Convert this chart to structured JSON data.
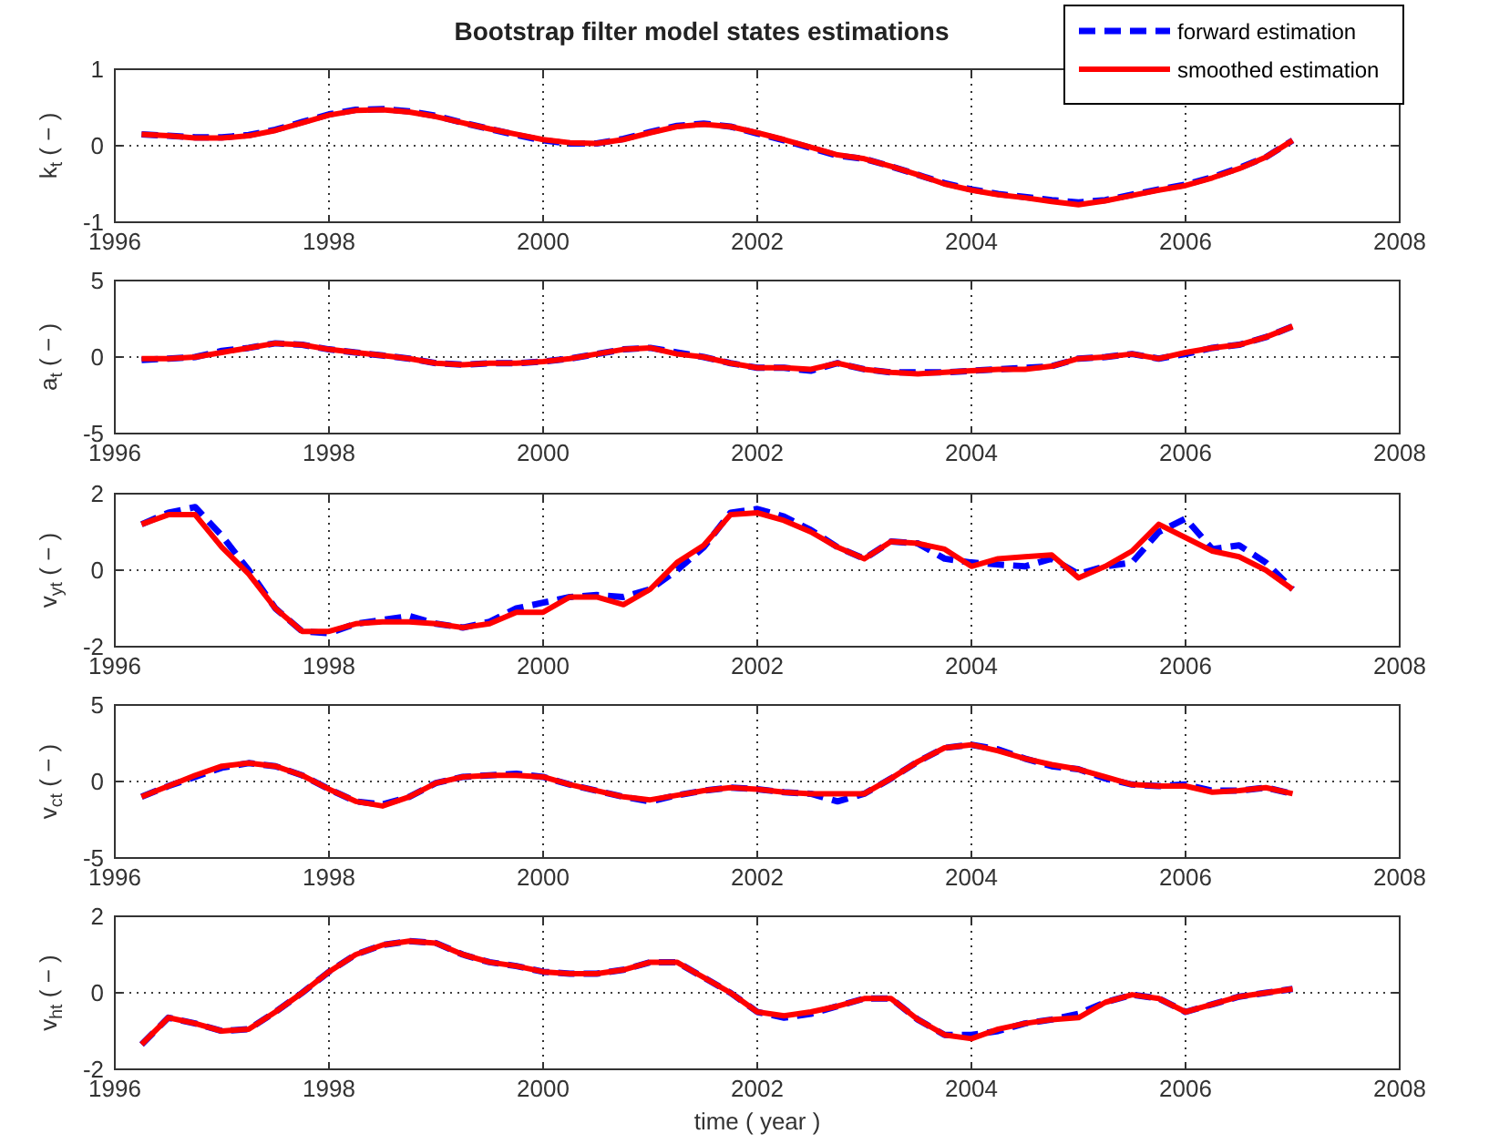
{
  "chart_data": [
    {
      "type": "line",
      "title": "Bootstrap filter model states estimations",
      "ylabel": "k$_{t}$ ( − )",
      "legend": "top right",
      "grid": true,
      "xlim": [
        1996,
        2008
      ],
      "xticks": [
        1996,
        1998,
        2000,
        2002,
        2004,
        2006,
        2008
      ],
      "ylim": [
        -1,
        1
      ],
      "yticks": [
        -1,
        0,
        1
      ],
      "x": [
        1996.25,
        1996.5,
        1996.75,
        1997,
        1997.25,
        1997.5,
        1997.75,
        1998,
        1998.25,
        1998.5,
        1998.75,
        1999,
        1999.25,
        1999.5,
        1999.75,
        2000,
        2000.25,
        2000.5,
        2000.75,
        2001,
        2001.25,
        2001.5,
        2001.75,
        2002,
        2002.25,
        2002.5,
        2002.75,
        2003,
        2003.25,
        2003.5,
        2003.75,
        2004,
        2004.25,
        2004.5,
        2004.75,
        2005,
        2005.25,
        2005.5,
        2005.75,
        2006,
        2006.25,
        2006.5,
        2006.75,
        2007
      ],
      "series": [
        {
          "name": "forward estimation",
          "color": "#0000ff",
          "line_style": "dashed",
          "values": [
            0.15,
            0.13,
            0.11,
            0.11,
            0.14,
            0.21,
            0.31,
            0.41,
            0.47,
            0.48,
            0.45,
            0.39,
            0.3,
            0.22,
            0.14,
            0.07,
            0.03,
            0.03,
            0.09,
            0.18,
            0.26,
            0.29,
            0.25,
            0.16,
            0.07,
            -0.03,
            -0.13,
            -0.17,
            -0.27,
            -0.38,
            -0.49,
            -0.57,
            -0.63,
            -0.67,
            -0.71,
            -0.74,
            -0.71,
            -0.64,
            -0.57,
            -0.51,
            -0.41,
            -0.29,
            -0.15,
            0.07
          ]
        },
        {
          "name": "smoothed estimation",
          "color": "#ff0000",
          "line_style": "solid",
          "values": [
            0.15,
            0.13,
            0.1,
            0.1,
            0.13,
            0.2,
            0.3,
            0.4,
            0.46,
            0.47,
            0.44,
            0.38,
            0.3,
            0.22,
            0.15,
            0.08,
            0.04,
            0.03,
            0.08,
            0.17,
            0.25,
            0.28,
            0.25,
            0.17,
            0.08,
            -0.02,
            -0.12,
            -0.17,
            -0.27,
            -0.38,
            -0.5,
            -0.58,
            -0.64,
            -0.68,
            -0.73,
            -0.77,
            -0.72,
            -0.65,
            -0.58,
            -0.52,
            -0.42,
            -0.3,
            -0.15,
            0.07
          ]
        }
      ]
    },
    {
      "type": "line",
      "ylabel": "a$_{t}$ ( − )",
      "grid": true,
      "xlim": [
        1996,
        2008
      ],
      "xticks": [
        1996,
        1998,
        2000,
        2002,
        2004,
        2006,
        2008
      ],
      "ylim": [
        -5,
        5
      ],
      "yticks": [
        -5,
        0,
        5
      ],
      "x": [
        1996.25,
        1996.5,
        1996.75,
        1997,
        1997.25,
        1997.5,
        1997.75,
        1998,
        1998.25,
        1998.5,
        1998.75,
        1999,
        1999.25,
        1999.5,
        1999.75,
        2000,
        2000.25,
        2000.5,
        2000.75,
        2001,
        2001.25,
        2001.5,
        2001.75,
        2002,
        2002.25,
        2002.5,
        2002.75,
        2003,
        2003.25,
        2003.5,
        2003.75,
        2004,
        2004.25,
        2004.5,
        2004.75,
        2005,
        2005.25,
        2005.5,
        2005.75,
        2006,
        2006.25,
        2006.5,
        2006.75,
        2007
      ],
      "series": [
        {
          "color": "#0000ff",
          "line_style": "dashed",
          "values": [
            -0.2,
            -0.1,
            0.0,
            0.4,
            0.6,
            0.9,
            0.8,
            0.5,
            0.3,
            0.1,
            -0.1,
            -0.4,
            -0.5,
            -0.4,
            -0.4,
            -0.3,
            -0.1,
            0.2,
            0.5,
            0.6,
            0.3,
            0.0,
            -0.4,
            -0.7,
            -0.7,
            -0.9,
            -0.4,
            -0.8,
            -1.0,
            -1.0,
            -1.0,
            -0.9,
            -0.8,
            -0.7,
            -0.6,
            -0.1,
            0.0,
            0.2,
            -0.1,
            0.2,
            0.6,
            0.8,
            1.3,
            2.0
          ]
        },
        {
          "color": "#ff0000",
          "line_style": "solid",
          "values": [
            -0.1,
            -0.1,
            0.0,
            0.3,
            0.6,
            0.9,
            0.8,
            0.5,
            0.3,
            0.1,
            -0.1,
            -0.4,
            -0.5,
            -0.4,
            -0.4,
            -0.3,
            -0.1,
            0.2,
            0.5,
            0.6,
            0.2,
            0.0,
            -0.4,
            -0.7,
            -0.7,
            -0.8,
            -0.4,
            -0.8,
            -1.0,
            -1.1,
            -1.0,
            -0.9,
            -0.8,
            -0.8,
            -0.6,
            -0.1,
            0.0,
            0.2,
            -0.1,
            0.3,
            0.6,
            0.8,
            1.3,
            2.0
          ]
        }
      ]
    },
    {
      "type": "line",
      "ylabel": "v$_{yt}$ ( − )",
      "grid": true,
      "xlim": [
        1996,
        2008
      ],
      "xticks": [
        1996,
        1998,
        2000,
        2002,
        2004,
        2006,
        2008
      ],
      "ylim": [
        -2,
        2
      ],
      "yticks": [
        -2,
        0,
        2
      ],
      "x": [
        1996.25,
        1996.5,
        1996.75,
        1997,
        1997.25,
        1997.5,
        1997.75,
        1998,
        1998.25,
        1998.5,
        1998.75,
        1999,
        1999.25,
        1999.5,
        1999.75,
        2000,
        2000.25,
        2000.5,
        2000.75,
        2001,
        2001.25,
        2001.5,
        2001.75,
        2002,
        2002.25,
        2002.5,
        2002.75,
        2003,
        2003.25,
        2003.5,
        2003.75,
        2004,
        2004.25,
        2004.5,
        2004.75,
        2005,
        2005.25,
        2005.5,
        2005.75,
        2006,
        2006.25,
        2006.5,
        2006.75,
        2007
      ],
      "series": [
        {
          "color": "#0000ff",
          "line_style": "dashed",
          "values": [
            1.2,
            1.5,
            1.65,
            0.9,
            0.0,
            -1.0,
            -1.6,
            -1.65,
            -1.4,
            -1.3,
            -1.2,
            -1.4,
            -1.5,
            -1.35,
            -1.0,
            -0.85,
            -0.7,
            -0.65,
            -0.7,
            -0.5,
            0.0,
            0.6,
            1.5,
            1.6,
            1.4,
            1.05,
            0.6,
            0.3,
            0.75,
            0.7,
            0.3,
            0.2,
            0.15,
            0.1,
            0.3,
            -0.1,
            0.1,
            0.2,
            1.0,
            1.35,
            0.55,
            0.65,
            0.2,
            -0.5
          ]
        },
        {
          "color": "#ff0000",
          "line_style": "solid",
          "values": [
            1.2,
            1.45,
            1.45,
            0.6,
            -0.1,
            -1.0,
            -1.6,
            -1.6,
            -1.4,
            -1.35,
            -1.35,
            -1.4,
            -1.5,
            -1.4,
            -1.1,
            -1.1,
            -0.7,
            -0.7,
            -0.9,
            -0.5,
            0.2,
            0.65,
            1.45,
            1.5,
            1.3,
            1.0,
            0.6,
            0.3,
            0.75,
            0.7,
            0.55,
            0.1,
            0.3,
            0.35,
            0.4,
            -0.2,
            0.1,
            0.5,
            1.2,
            0.85,
            0.5,
            0.35,
            0.0,
            -0.5
          ]
        }
      ]
    },
    {
      "type": "line",
      "ylabel": "v$_{ct}$ ( − )",
      "grid": true,
      "xlim": [
        1996,
        2008
      ],
      "xticks": [
        1996,
        1998,
        2000,
        2002,
        2004,
        2006,
        2008
      ],
      "ylim": [
        -5,
        5
      ],
      "yticks": [
        -5,
        0,
        5
      ],
      "x": [
        1996.25,
        1996.5,
        1996.75,
        1997,
        1997.25,
        1997.5,
        1997.75,
        1998,
        1998.25,
        1998.5,
        1998.75,
        1999,
        1999.25,
        1999.5,
        1999.75,
        2000,
        2000.25,
        2000.5,
        2000.75,
        2001,
        2001.25,
        2001.5,
        2001.75,
        2002,
        2002.25,
        2002.5,
        2002.75,
        2003,
        2003.25,
        2003.5,
        2003.75,
        2004,
        2004.25,
        2004.5,
        2004.75,
        2005,
        2005.25,
        2005.5,
        2005.75,
        2006,
        2006.25,
        2006.5,
        2006.75,
        2007
      ],
      "series": [
        {
          "color": "#0000ff",
          "line_style": "dashed",
          "values": [
            -1.0,
            -0.3,
            0.3,
            0.9,
            1.2,
            1.0,
            0.4,
            -0.5,
            -1.3,
            -1.5,
            -1.0,
            -0.1,
            0.3,
            0.4,
            0.5,
            0.3,
            -0.2,
            -0.6,
            -1.0,
            -1.3,
            -0.9,
            -0.6,
            -0.4,
            -0.5,
            -0.7,
            -0.8,
            -1.3,
            -0.8,
            0.2,
            1.3,
            2.2,
            2.4,
            2.1,
            1.5,
            1.0,
            0.8,
            0.2,
            -0.2,
            -0.3,
            -0.2,
            -0.6,
            -0.6,
            -0.4,
            -0.8
          ]
        },
        {
          "color": "#ff0000",
          "line_style": "solid",
          "values": [
            -1.0,
            -0.3,
            0.4,
            1.0,
            1.2,
            1.0,
            0.4,
            -0.5,
            -1.3,
            -1.6,
            -1.0,
            -0.1,
            0.3,
            0.4,
            0.4,
            0.3,
            -0.2,
            -0.6,
            -1.0,
            -1.2,
            -0.9,
            -0.6,
            -0.4,
            -0.5,
            -0.7,
            -0.8,
            -0.8,
            -0.8,
            0.2,
            1.3,
            2.2,
            2.4,
            2.0,
            1.5,
            1.1,
            0.8,
            0.3,
            -0.2,
            -0.3,
            -0.3,
            -0.7,
            -0.6,
            -0.4,
            -0.8
          ]
        }
      ]
    },
    {
      "type": "line",
      "ylabel": "v$_{ht}$ ( − )",
      "xlabel": "time ( year )",
      "grid": true,
      "xlim": [
        1996,
        2008
      ],
      "xticks": [
        1996,
        1998,
        2000,
        2002,
        2004,
        2006,
        2008
      ],
      "ylim": [
        -2,
        2
      ],
      "yticks": [
        -2,
        0,
        2
      ],
      "x": [
        1996.25,
        1996.5,
        1996.75,
        1997,
        1997.25,
        1997.5,
        1997.75,
        1998,
        1998.25,
        1998.5,
        1998.75,
        1999,
        1999.25,
        1999.5,
        1999.75,
        2000,
        2000.25,
        2000.5,
        2000.75,
        2001,
        2001.25,
        2001.5,
        2001.75,
        2002,
        2002.25,
        2002.5,
        2002.75,
        2003,
        2003.25,
        2003.5,
        2003.75,
        2004,
        2004.25,
        2004.5,
        2004.75,
        2005,
        2005.25,
        2005.5,
        2005.75,
        2006,
        2006.25,
        2006.5,
        2006.75,
        2007
      ],
      "series": [
        {
          "color": "#0000ff",
          "line_style": "dashed",
          "values": [
            -1.35,
            -0.65,
            -0.8,
            -1.0,
            -0.95,
            -0.5,
            0.0,
            0.55,
            1.0,
            1.25,
            1.35,
            1.3,
            1.0,
            0.8,
            0.7,
            0.55,
            0.5,
            0.5,
            0.6,
            0.8,
            0.8,
            0.4,
            0.0,
            -0.5,
            -0.65,
            -0.55,
            -0.35,
            -0.15,
            -0.15,
            -0.7,
            -1.1,
            -1.1,
            -1.0,
            -0.8,
            -0.7,
            -0.55,
            -0.25,
            -0.05,
            -0.15,
            -0.5,
            -0.3,
            -0.1,
            0.0,
            0.1
          ]
        },
        {
          "color": "#ff0000",
          "line_style": "solid",
          "values": [
            -1.35,
            -0.65,
            -0.8,
            -1.0,
            -0.95,
            -0.5,
            0.0,
            0.55,
            1.0,
            1.25,
            1.35,
            1.3,
            1.0,
            0.8,
            0.7,
            0.55,
            0.5,
            0.5,
            0.6,
            0.8,
            0.8,
            0.4,
            0.0,
            -0.5,
            -0.6,
            -0.5,
            -0.35,
            -0.15,
            -0.15,
            -0.7,
            -1.1,
            -1.2,
            -0.95,
            -0.8,
            -0.7,
            -0.65,
            -0.25,
            -0.05,
            -0.15,
            -0.5,
            -0.3,
            -0.1,
            0.0,
            0.1
          ]
        }
      ]
    }
  ]
}
